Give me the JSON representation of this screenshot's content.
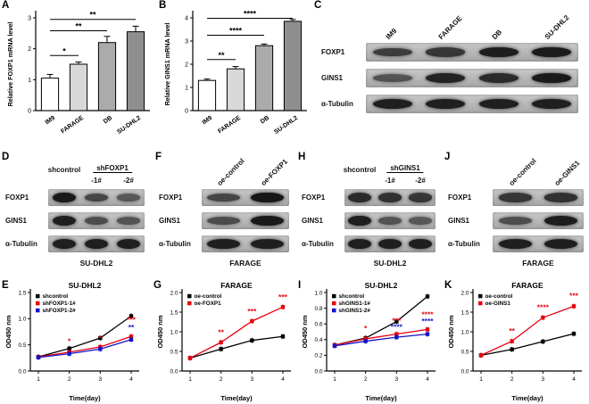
{
  "panels": {
    "A": {
      "label": "A"
    },
    "B": {
      "label": "B"
    },
    "C": {
      "label": "C",
      "blot": {
        "header_type": "rotated",
        "lanes": [
          "IM9",
          "FARAGE",
          "DB",
          "SU-DHL2"
        ],
        "rows": [
          {
            "protein": "FOXP1",
            "bands": [
              0.65,
              0.7,
              0.92,
              0.95
            ]
          },
          {
            "protein": "GINS1",
            "bands": [
              0.45,
              0.85,
              0.8,
              0.95
            ]
          },
          {
            "protein": "α-Tubulin",
            "bands": [
              0.9,
              0.9,
              0.9,
              0.9
            ]
          }
        ],
        "cell_line": ""
      }
    },
    "D": {
      "label": "D",
      "blot": {
        "header_type": "grouped",
        "groups": [
          {
            "label": "shcontrol",
            "span": 1
          },
          {
            "label": "shFOXP1",
            "span": 2,
            "sublabels": [
              "-1#",
              "-2#"
            ]
          }
        ],
        "rows": [
          {
            "protein": "FOXP1",
            "bands": [
              0.95,
              0.55,
              0.4
            ]
          },
          {
            "protein": "GINS1",
            "bands": [
              0.9,
              0.5,
              0.45
            ]
          },
          {
            "protein": "α-Tubulin",
            "bands": [
              0.9,
              0.9,
              0.9
            ]
          }
        ],
        "cell_line": "SU-DHL2"
      }
    },
    "E": {
      "label": "E"
    },
    "F": {
      "label": "F",
      "blot": {
        "header_type": "rotated",
        "lanes": [
          "oe-control",
          "oe-FOXP1"
        ],
        "rows": [
          {
            "protein": "FOXP1",
            "bands": [
              0.55,
              0.97
            ]
          },
          {
            "protein": "GINS1",
            "bands": [
              0.5,
              0.95
            ]
          },
          {
            "protein": "α-Tubulin",
            "bands": [
              0.9,
              0.9
            ]
          }
        ],
        "cell_line": "FARAGE"
      }
    },
    "G": {
      "label": "G"
    },
    "H": {
      "label": "H",
      "blot": {
        "header_type": "grouped",
        "groups": [
          {
            "label": "shcontrol",
            "span": 1
          },
          {
            "label": "shGINS1",
            "span": 2,
            "sublabels": [
              "-1#",
              "-2#"
            ]
          }
        ],
        "rows": [
          {
            "protein": "FOXP1",
            "bands": [
              0.8,
              0.75,
              0.7
            ]
          },
          {
            "protein": "GINS1",
            "bands": [
              0.9,
              0.45,
              0.4
            ]
          },
          {
            "protein": "α-Tubulin",
            "bands": [
              0.9,
              0.9,
              0.9
            ]
          }
        ],
        "cell_line": "SU-DHL2"
      }
    },
    "I": {
      "label": "I"
    },
    "J": {
      "label": "J",
      "blot": {
        "header_type": "rotated",
        "lanes": [
          "oe-control",
          "oe-GINS1"
        ],
        "rows": [
          {
            "protein": "FOXP1",
            "bands": [
              0.7,
              0.75
            ]
          },
          {
            "protein": "GINS1",
            "bands": [
              0.5,
              0.92
            ]
          },
          {
            "protein": "α-Tubulin",
            "bands": [
              0.9,
              0.9
            ]
          }
        ],
        "cell_line": "FARAGE"
      }
    },
    "K": {
      "label": "K"
    }
  },
  "chart_data": [
    {
      "id": "A",
      "type": "bar",
      "categories": [
        "IM9",
        "FARAGE",
        "DB",
        "SU-DHL2"
      ],
      "values": [
        1.05,
        1.5,
        2.2,
        2.55
      ],
      "errors": [
        0.12,
        0.07,
        0.2,
        0.18
      ],
      "title": "",
      "xlabel": "",
      "ylabel": "Relative FOXP1 mRNA level",
      "ylim": [
        0,
        3
      ],
      "yticks": [
        0,
        1,
        2,
        3
      ],
      "bar_colors": [
        "#ffffff",
        "#d8d8d8",
        "#ababab",
        "#8e8e8e"
      ],
      "significance": [
        {
          "from": 0,
          "to": 1,
          "y": 1.78,
          "stars": "*"
        },
        {
          "from": 0,
          "to": 2,
          "y": 2.58,
          "stars": "**"
        },
        {
          "from": 0,
          "to": 3,
          "y": 2.95,
          "stars": "**"
        }
      ]
    },
    {
      "id": "B",
      "type": "bar",
      "categories": [
        "IM9",
        "FARAGE",
        "DB",
        "SU-DHL2"
      ],
      "values": [
        1.3,
        1.8,
        2.8,
        3.85
      ],
      "errors": [
        0.06,
        0.1,
        0.07,
        0.08
      ],
      "title": "",
      "xlabel": "",
      "ylabel": "Relative GINS1 mRNA level",
      "ylim": [
        0,
        4
      ],
      "yticks": [
        0,
        1,
        2,
        3,
        4
      ],
      "bar_colors": [
        "#ffffff",
        "#d8d8d8",
        "#ababab",
        "#8e8e8e"
      ],
      "significance": [
        {
          "from": 0,
          "to": 1,
          "y": 2.2,
          "stars": "**"
        },
        {
          "from": 0,
          "to": 2,
          "y": 3.25,
          "stars": "****"
        },
        {
          "from": 0,
          "to": 3,
          "y": 3.98,
          "stars": "****"
        }
      ]
    },
    {
      "id": "E",
      "type": "line",
      "title": "SU-DHL2",
      "x": [
        1,
        2,
        3,
        4
      ],
      "xlabel": "Time(day)",
      "ylabel": "OD450 nm",
      "ylim": [
        0,
        1.5
      ],
      "yticks": [
        0,
        0.5,
        1,
        1.5
      ],
      "series": [
        {
          "name": "shcontrol",
          "color": "#000000",
          "values": [
            0.27,
            0.43,
            0.63,
            1.05
          ]
        },
        {
          "name": "shFOXP1-1#",
          "color": "#e8000d",
          "values": [
            0.27,
            0.36,
            0.46,
            0.66
          ]
        },
        {
          "name": "shFOXP1-2#",
          "color": "#1414c8",
          "values": [
            0.26,
            0.33,
            0.42,
            0.6
          ]
        }
      ],
      "annotations": [
        {
          "x": 2,
          "y": 0.52,
          "text": "*",
          "color": "#e8000d"
        },
        {
          "x": 3,
          "y": 0.58,
          "text": "*",
          "color": "#e8000d"
        },
        {
          "x": 4,
          "y": 0.93,
          "text": "***",
          "color": "#e8000d"
        },
        {
          "x": 4,
          "y": 0.78,
          "text": "**",
          "color": "#1414c8"
        }
      ]
    },
    {
      "id": "G",
      "type": "line",
      "title": "FARAGE",
      "x": [
        1,
        2,
        3,
        4
      ],
      "xlabel": "Time(day)",
      "ylabel": "OD450 nm",
      "ylim": [
        0,
        2
      ],
      "yticks": [
        0,
        0.5,
        1,
        1.5,
        2
      ],
      "series": [
        {
          "name": "oe-control",
          "color": "#000000",
          "values": [
            0.33,
            0.56,
            0.78,
            0.88
          ]
        },
        {
          "name": "oe-FOXP1",
          "color": "#e8000d",
          "values": [
            0.33,
            0.73,
            1.27,
            1.63
          ]
        }
      ],
      "annotations": [
        {
          "x": 2,
          "y": 0.92,
          "text": "**",
          "color": "#e8000d"
        },
        {
          "x": 3,
          "y": 1.45,
          "text": "***",
          "color": "#e8000d"
        },
        {
          "x": 4,
          "y": 1.82,
          "text": "***",
          "color": "#e8000d"
        }
      ]
    },
    {
      "id": "I",
      "type": "line",
      "title": "SU-DHL2",
      "x": [
        1,
        2,
        3,
        4
      ],
      "xlabel": "Time(day)",
      "ylabel": "OD450 nm",
      "ylim": [
        0,
        1
      ],
      "yticks": [
        0,
        0.2,
        0.4,
        0.6,
        0.8,
        1
      ],
      "series": [
        {
          "name": "shcontrol",
          "color": "#000000",
          "values": [
            0.33,
            0.42,
            0.63,
            0.95
          ]
        },
        {
          "name": "shGINS1-1#",
          "color": "#e8000d",
          "values": [
            0.33,
            0.41,
            0.47,
            0.53
          ]
        },
        {
          "name": "shGINS1-2#",
          "color": "#1414c8",
          "values": [
            0.32,
            0.38,
            0.43,
            0.47
          ]
        }
      ],
      "annotations": [
        {
          "x": 2,
          "y": 0.51,
          "text": "*",
          "color": "#e8000d"
        },
        {
          "x": 3,
          "y": 0.61,
          "text": "***",
          "color": "#e8000d"
        },
        {
          "x": 3,
          "y": 0.53,
          "text": "****",
          "color": "#1414c8"
        },
        {
          "x": 4,
          "y": 0.69,
          "text": "****",
          "color": "#e8000d"
        },
        {
          "x": 4,
          "y": 0.6,
          "text": "****",
          "color": "#1414c8"
        }
      ]
    },
    {
      "id": "K",
      "type": "line",
      "title": "FARAGE",
      "x": [
        1,
        2,
        3,
        4
      ],
      "xlabel": "Time(day)",
      "ylabel": "OD450 nm",
      "ylim": [
        0,
        2
      ],
      "yticks": [
        0,
        0.5,
        1,
        1.5,
        2
      ],
      "series": [
        {
          "name": "oe-control",
          "color": "#000000",
          "values": [
            0.4,
            0.55,
            0.75,
            0.95
          ]
        },
        {
          "name": "oe-GINS1",
          "color": "#e8000d",
          "values": [
            0.4,
            0.76,
            1.36,
            1.65
          ]
        }
      ],
      "annotations": [
        {
          "x": 2,
          "y": 0.96,
          "text": "**",
          "color": "#e8000d"
        },
        {
          "x": 3,
          "y": 1.56,
          "text": "****",
          "color": "#e8000d"
        },
        {
          "x": 4,
          "y": 1.85,
          "text": "***",
          "color": "#e8000d"
        }
      ]
    }
  ]
}
